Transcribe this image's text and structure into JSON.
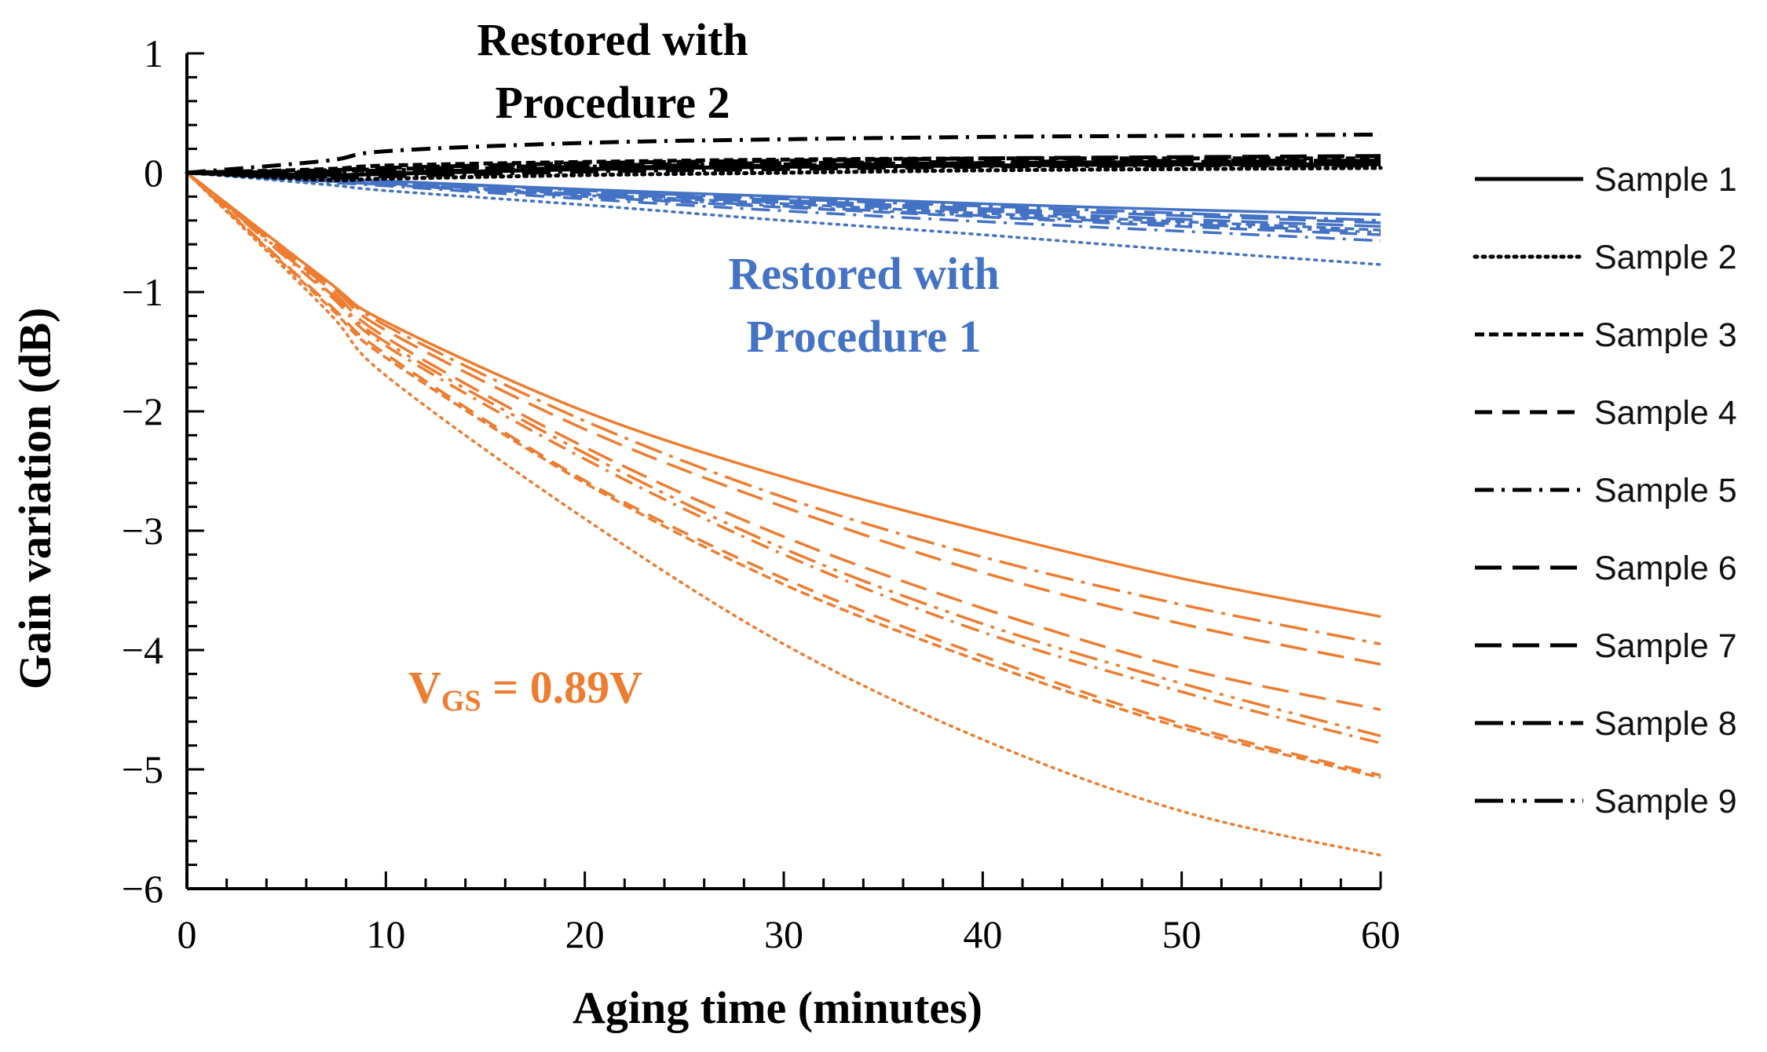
{
  "chart_data": {
    "type": "line",
    "title": "",
    "xlabel": "Aging time (minutes)",
    "ylabel": "Gain variation (dB)",
    "xlim": [
      0,
      60
    ],
    "ylim": [
      -6,
      1
    ],
    "x_ticks": [
      0,
      10,
      20,
      30,
      40,
      50,
      60
    ],
    "y_ticks": [
      1,
      0,
      -1,
      -2,
      -3,
      -4,
      -5,
      -6
    ],
    "y_tick_labels": [
      "1",
      "0",
      "−1",
      "−2",
      "−3",
      "−4",
      "−5",
      "−6"
    ],
    "x": [
      0,
      7,
      10,
      20,
      30,
      40,
      50,
      60
    ],
    "legend_position": "right",
    "legend": [
      {
        "name": "Sample 1",
        "dash": "solid"
      },
      {
        "name": "Sample 2",
        "dash": "dotted"
      },
      {
        "name": "Sample 3",
        "dash": "short-dash"
      },
      {
        "name": "Sample 4",
        "dash": "dash"
      },
      {
        "name": "Sample 5",
        "dash": "dash-dot"
      },
      {
        "name": "Sample 6",
        "dash": "long-dash"
      },
      {
        "name": "Sample 7",
        "dash": "long-dash"
      },
      {
        "name": "Sample 8",
        "dash": "long-dash-dot"
      },
      {
        "name": "Sample 9",
        "dash": "long-dash-dot-dot"
      }
    ],
    "groups": [
      {
        "name": "VGS = 0.89V",
        "color": "#ED7D31",
        "series": [
          {
            "name": "Sample 1",
            "values": [
              0,
              -0.9,
              -1.25,
              -2.0,
              -2.55,
              -3.0,
              -3.4,
              -3.72
            ]
          },
          {
            "name": "Sample 2",
            "values": [
              0,
              -1.15,
              -1.7,
              -2.9,
              -3.95,
              -4.75,
              -5.35,
              -5.72
            ]
          },
          {
            "name": "Sample 3",
            "values": [
              0,
              -1.1,
              -1.55,
              -2.6,
              -3.45,
              -4.1,
              -4.65,
              -5.07
            ]
          },
          {
            "name": "Sample 4",
            "values": [
              0,
              -1.08,
              -1.52,
              -2.58,
              -3.4,
              -4.05,
              -4.62,
              -5.05
            ]
          },
          {
            "name": "Sample 5",
            "values": [
              0,
              -1.0,
              -1.45,
              -2.4,
              -3.2,
              -3.85,
              -4.35,
              -4.78
            ]
          },
          {
            "name": "Sample 6",
            "values": [
              0,
              -0.92,
              -1.32,
              -2.15,
              -2.8,
              -3.35,
              -3.78,
              -4.12
            ]
          },
          {
            "name": "Sample 7",
            "values": [
              0,
              -0.95,
              -1.38,
              -2.3,
              -3.05,
              -3.65,
              -4.15,
              -4.5
            ]
          },
          {
            "name": "Sample 8",
            "values": [
              0,
              -0.9,
              -1.28,
              -2.08,
              -2.72,
              -3.22,
              -3.62,
              -3.95
            ]
          },
          {
            "name": "Sample 9",
            "values": [
              0,
              -0.98,
              -1.42,
              -2.35,
              -3.15,
              -3.78,
              -4.28,
              -4.72
            ]
          }
        ]
      },
      {
        "name": "Restored with Procedure 1",
        "color": "#4472C4",
        "series": [
          {
            "name": "Sample 1",
            "values": [
              0,
              -0.05,
              -0.07,
              -0.14,
              -0.2,
              -0.26,
              -0.31,
              -0.35
            ]
          },
          {
            "name": "Sample 2",
            "values": [
              0,
              -0.1,
              -0.15,
              -0.27,
              -0.4,
              -0.52,
              -0.65,
              -0.77
            ]
          },
          {
            "name": "Sample 3",
            "values": [
              0,
              -0.06,
              -0.09,
              -0.18,
              -0.26,
              -0.34,
              -0.41,
              -0.48
            ]
          },
          {
            "name": "Sample 4",
            "values": [
              0,
              -0.07,
              -0.1,
              -0.2,
              -0.29,
              -0.37,
              -0.45,
              -0.52
            ]
          },
          {
            "name": "Sample 5",
            "values": [
              0,
              -0.08,
              -0.11,
              -0.22,
              -0.32,
              -0.41,
              -0.49,
              -0.57
            ]
          },
          {
            "name": "Sample 6",
            "values": [
              0,
              -0.05,
              -0.08,
              -0.16,
              -0.23,
              -0.3,
              -0.36,
              -0.42
            ]
          },
          {
            "name": "Sample 7",
            "values": [
              0,
              -0.06,
              -0.09,
              -0.17,
              -0.25,
              -0.32,
              -0.39,
              -0.45
            ]
          },
          {
            "name": "Sample 8",
            "values": [
              0,
              -0.05,
              -0.07,
              -0.15,
              -0.22,
              -0.28,
              -0.34,
              -0.4
            ]
          },
          {
            "name": "Sample 9",
            "values": [
              0,
              -0.07,
              -0.1,
              -0.19,
              -0.28,
              -0.36,
              -0.43,
              -0.5
            ]
          }
        ]
      },
      {
        "name": "Restored with Procedure 2",
        "color": "#000000",
        "series": [
          {
            "name": "Sample 1",
            "values": [
              0,
              -0.02,
              -0.01,
              0.03,
              0.05,
              0.06,
              0.07,
              0.07
            ]
          },
          {
            "name": "Sample 2",
            "values": [
              0,
              -0.06,
              -0.05,
              -0.02,
              0.0,
              0.02,
              0.03,
              0.04
            ]
          },
          {
            "name": "Sample 3",
            "values": [
              0,
              0.03,
              0.06,
              0.09,
              0.11,
              0.12,
              0.12,
              0.12
            ]
          },
          {
            "name": "Sample 4",
            "values": [
              0,
              0.01,
              0.03,
              0.06,
              0.08,
              0.09,
              0.1,
              0.1
            ]
          },
          {
            "name": "Sample 5",
            "values": [
              0,
              0.1,
              0.18,
              0.25,
              0.28,
              0.3,
              0.31,
              0.32
            ]
          },
          {
            "name": "Sample 6",
            "values": [
              0,
              -0.03,
              0.0,
              0.04,
              0.06,
              0.08,
              0.09,
              0.1
            ]
          },
          {
            "name": "Sample 7",
            "values": [
              0,
              0.02,
              0.04,
              0.08,
              0.1,
              0.12,
              0.13,
              0.14
            ]
          },
          {
            "name": "Sample 8",
            "values": [
              0,
              -0.04,
              -0.03,
              0.01,
              0.03,
              0.05,
              0.06,
              0.06
            ]
          },
          {
            "name": "Sample 9",
            "values": [
              0,
              0.0,
              0.02,
              0.05,
              0.07,
              0.08,
              0.09,
              0.09
            ]
          }
        ]
      }
    ],
    "annotations": [
      {
        "text": "Restored with",
        "group": "Restored with Procedure 2"
      },
      {
        "text": "Procedure 2",
        "group": "Restored with Procedure 2"
      },
      {
        "text": "Restored with",
        "group": "Restored with Procedure 1"
      },
      {
        "text": "Procedure 1",
        "group": "Restored with Procedure 1"
      },
      {
        "text_main": "V",
        "text_sub": "GS",
        "text_rest": " = 0.89V",
        "group": "VGS = 0.89V"
      }
    ]
  }
}
